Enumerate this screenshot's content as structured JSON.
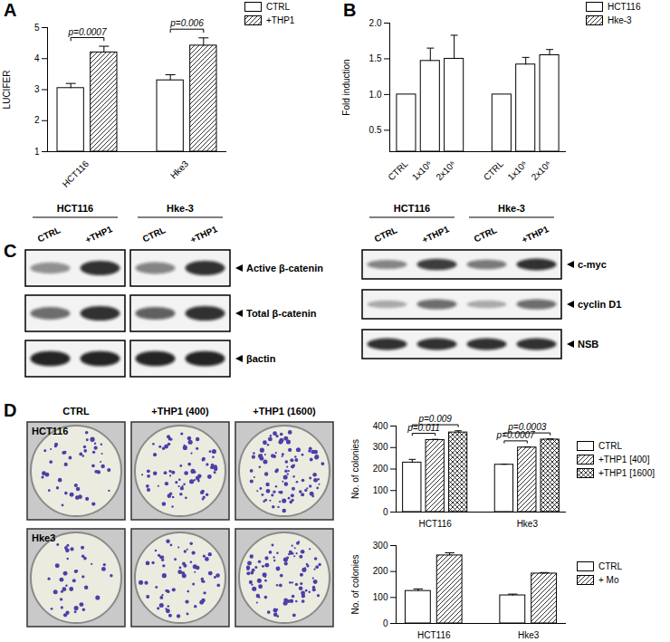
{
  "chart_data": [
    {
      "type": "bar",
      "title": "A",
      "y_label": "LUCIFER",
      "categories": [
        "HCT116",
        "Hke3"
      ],
      "series": [
        {
          "name": "CTRL",
          "color": "#ffffff",
          "values": [
            3.05,
            3.3
          ],
          "errors": [
            0.15,
            0.18
          ]
        },
        {
          "name": "+THP1",
          "color": "#ffffff",
          "values": [
            4.2,
            4.42
          ],
          "errors": [
            0.2,
            0.25
          ]
        }
      ],
      "ylim": [
        1,
        5
      ],
      "yticks": [
        1,
        2,
        3,
        4,
        5
      ],
      "legend": "top-right",
      "annotations": [
        {
          "text": "p=0.0007",
          "category": "HCT116",
          "from": "CTRL",
          "to": "+THP1"
        },
        {
          "text": "p=0.006",
          "category": "Hke3",
          "from": "CTRL",
          "to": "+THP1"
        }
      ]
    },
    {
      "type": "bar",
      "title": "B",
      "y_label": "Fold induction",
      "categories": [
        "CTRL",
        "1x10⁶",
        "2x10⁶"
      ],
      "series": [
        {
          "name": "HCT116",
          "color": "#ffffff",
          "values": [
            1,
            1.47,
            1.5
          ],
          "errors": [
            0,
            0.18,
            0.33
          ]
        },
        {
          "name": "Hke-3",
          "color": "#ffffff",
          "values": [
            1,
            1.42,
            1.55
          ],
          "errors": [
            0,
            0.1,
            0.08
          ]
        }
      ],
      "ylim": [
        0.2,
        2.0
      ],
      "yticks": [
        0.5,
        {
          "value": 1,
          "label": "1.0"
        },
        1.5,
        {
          "value": 2,
          "label": "2.0"
        }
      ],
      "legend": "top-right"
    },
    {
      "type": "bar",
      "y_label": "No. of colonies",
      "categories": [
        "HCT116",
        "Hke3"
      ],
      "series": [
        {
          "name": "CTRL",
          "color": "#ffffff",
          "values": [
            230,
            220
          ],
          "errors": [
            15,
            3
          ]
        },
        {
          "name": "+THP1 [400]",
          "color": "#ffffff",
          "values": [
            335,
            300
          ],
          "errors": [
            3,
            3
          ]
        },
        {
          "name": "+THP1 [1600]",
          "color": "#ffffff",
          "values": [
            370,
            337
          ],
          "errors": [
            8,
            3
          ]
        }
      ],
      "ylim": [
        0,
        400
      ],
      "yticks": [
        0,
        100,
        200,
        300,
        400
      ],
      "legend": "right",
      "annotations": [
        {
          "text": "p=0.011",
          "category": "HCT116",
          "from": "CTRL",
          "to": "+THP1 [400]"
        },
        {
          "text": "p=0.009",
          "category": "HCT116",
          "from": "CTRL",
          "to": "+THP1 [1600]"
        },
        {
          "text": "p=0.0007",
          "category": "Hke3",
          "from": "CTRL",
          "to": "+THP1 [400]"
        },
        {
          "text": "p=0.0003",
          "category": "Hke3",
          "from": "CTRL",
          "to": "+THP1 [1600]"
        }
      ]
    },
    {
      "type": "bar",
      "y_label": "No. of colonies",
      "categories": [
        "HCT116",
        "Hke3"
      ],
      "series": [
        {
          "name": "CTRL",
          "color": "#ffffff",
          "values": [
            125,
            108
          ],
          "errors": [
            8,
            5
          ]
        },
        {
          "name": "+ Mo",
          "color": "#ffffff",
          "values": [
            262,
            192
          ],
          "errors": [
            10,
            4
          ]
        }
      ],
      "ylim": [
        0,
        300
      ],
      "yticks": [
        0,
        100,
        200,
        300
      ],
      "legend": "right"
    }
  ],
  "blots": {
    "panel_label": "C",
    "panels": [
      {
        "groups": [
          "HCT116",
          "Hke-3"
        ],
        "lanes": [
          "CTRL",
          "+THP1"
        ],
        "rows": [
          "Active β-catenin",
          "Total β-catenin",
          "βactin"
        ]
      },
      {
        "groups": [
          "HCT116",
          "Hke-3"
        ],
        "lanes": [
          "CTRL",
          "+THP1"
        ],
        "rows": [
          "c-myc",
          "cyclin D1",
          "NSB"
        ]
      }
    ]
  },
  "plates": {
    "panel_label": "D",
    "columns": [
      "CTRL",
      "+THP1 (400)",
      "+THP1 (1600)"
    ],
    "rows": [
      "HCT116",
      "Hke3"
    ]
  }
}
